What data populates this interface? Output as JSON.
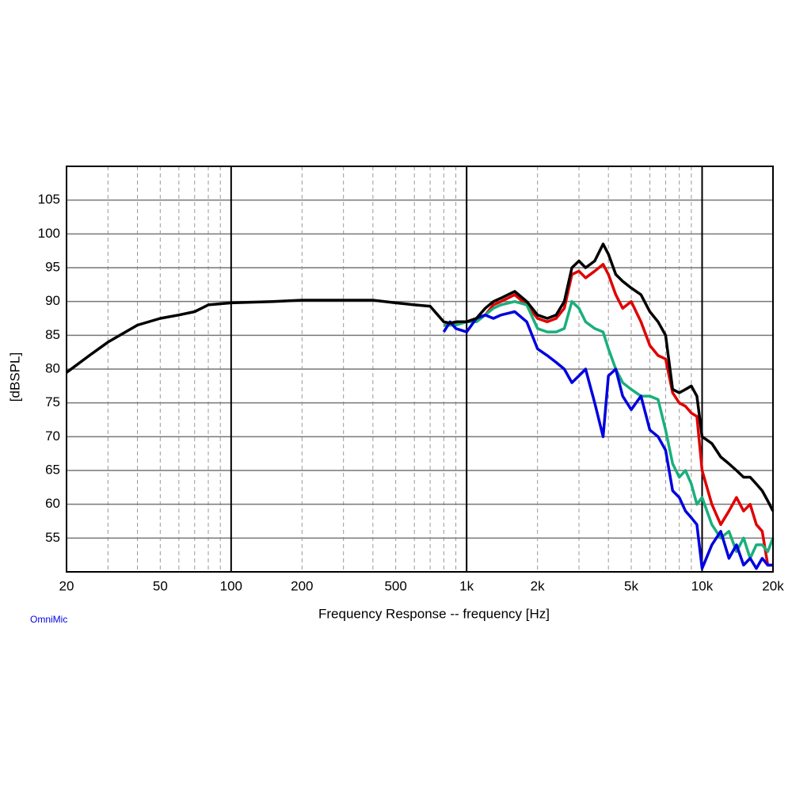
{
  "chart_data": {
    "type": "line",
    "x_label": "Frequency Response -- frequency [Hz]",
    "y_label": "[dBSPL]",
    "annotation": "OmniMic",
    "log_x": true,
    "grid": true,
    "xlim": [
      20,
      20000
    ],
    "ylim": [
      50,
      110
    ],
    "xticks": [
      20,
      50,
      100,
      200,
      500,
      {
        "value": 1000,
        "label": "1k"
      },
      {
        "value": 2000,
        "label": "2k"
      },
      {
        "value": 5000,
        "label": "5k"
      },
      {
        "value": 10000,
        "label": "10k"
      },
      {
        "value": 20000,
        "label": "20k"
      }
    ],
    "yticks": [
      55,
      60,
      65,
      70,
      75,
      80,
      85,
      90,
      95,
      100,
      105
    ],
    "x": [
      20,
      25,
      30,
      40,
      50,
      60,
      70,
      80,
      100,
      150,
      200,
      300,
      400,
      500,
      600,
      700,
      800,
      850,
      900,
      1000,
      1100,
      1200,
      1300,
      1400,
      1600,
      1800,
      2000,
      2200,
      2400,
      2600,
      2800,
      3000,
      3200,
      3500,
      3800,
      4000,
      4300,
      4600,
      5000,
      5500,
      6000,
      6500,
      7000,
      7500,
      8000,
      8500,
      9000,
      9500,
      10000,
      11000,
      12000,
      13000,
      14000,
      15000,
      16000,
      17000,
      18000,
      19000,
      20000
    ],
    "series": [
      {
        "color": "#e00000",
        "values": [
          null,
          null,
          null,
          null,
          null,
          null,
          null,
          null,
          null,
          null,
          null,
          null,
          null,
          null,
          null,
          null,
          86.5,
          86.5,
          86.8,
          87,
          87.5,
          88,
          89.5,
          90,
          91,
          89.5,
          87.5,
          87,
          87.5,
          89,
          94,
          94.5,
          93.5,
          94.5,
          95.5,
          94,
          91,
          89,
          90,
          87,
          83.5,
          82,
          81.5,
          76.5,
          75,
          74.5,
          73.5,
          73,
          65,
          60,
          57,
          59,
          61,
          59,
          60,
          57,
          56,
          51,
          51
        ]
      },
      {
        "color": "#1aaf7d",
        "values": [
          null,
          null,
          null,
          null,
          null,
          null,
          null,
          null,
          null,
          null,
          null,
          null,
          null,
          null,
          null,
          null,
          86.5,
          86.5,
          86.5,
          87,
          87,
          88,
          89,
          89.5,
          90,
          89.5,
          86,
          85.5,
          85.5,
          86,
          90,
          89,
          87,
          86,
          85.5,
          83,
          80,
          78,
          77,
          76,
          76,
          75.5,
          71,
          66,
          64,
          65,
          63,
          60,
          61,
          57,
          55,
          56,
          53,
          55,
          52,
          54,
          54,
          53,
          55
        ]
      },
      {
        "color": "#0000e0",
        "values": [
          null,
          null,
          null,
          null,
          null,
          null,
          null,
          null,
          null,
          null,
          null,
          null,
          null,
          null,
          null,
          null,
          85.5,
          87,
          86,
          85.5,
          87.5,
          88,
          87.5,
          88,
          88.5,
          87,
          83,
          82,
          81,
          80,
          78,
          79,
          80,
          75,
          70,
          79,
          80,
          76,
          74,
          76,
          71,
          70,
          68,
          62,
          61,
          59,
          58,
          57,
          50.5,
          54,
          56,
          52,
          54,
          51,
          52,
          50.5,
          52,
          51,
          51
        ]
      },
      {
        "color": "#000000",
        "values": [
          79.5,
          82,
          84,
          86.5,
          87.5,
          88,
          88.5,
          89.5,
          89.8,
          90,
          90.2,
          90.2,
          90.2,
          89.8,
          89.5,
          89.3,
          87,
          86.8,
          87,
          87,
          87.5,
          89,
          90,
          90.5,
          91.5,
          90,
          88,
          87.5,
          88,
          90,
          95,
          96,
          95,
          96,
          98.5,
          97,
          94,
          93,
          92,
          91,
          88.5,
          87,
          85,
          77,
          76.5,
          77,
          77.5,
          76,
          70,
          69,
          67,
          66,
          65,
          64,
          64,
          63,
          62,
          60.5,
          59
        ]
      }
    ]
  }
}
